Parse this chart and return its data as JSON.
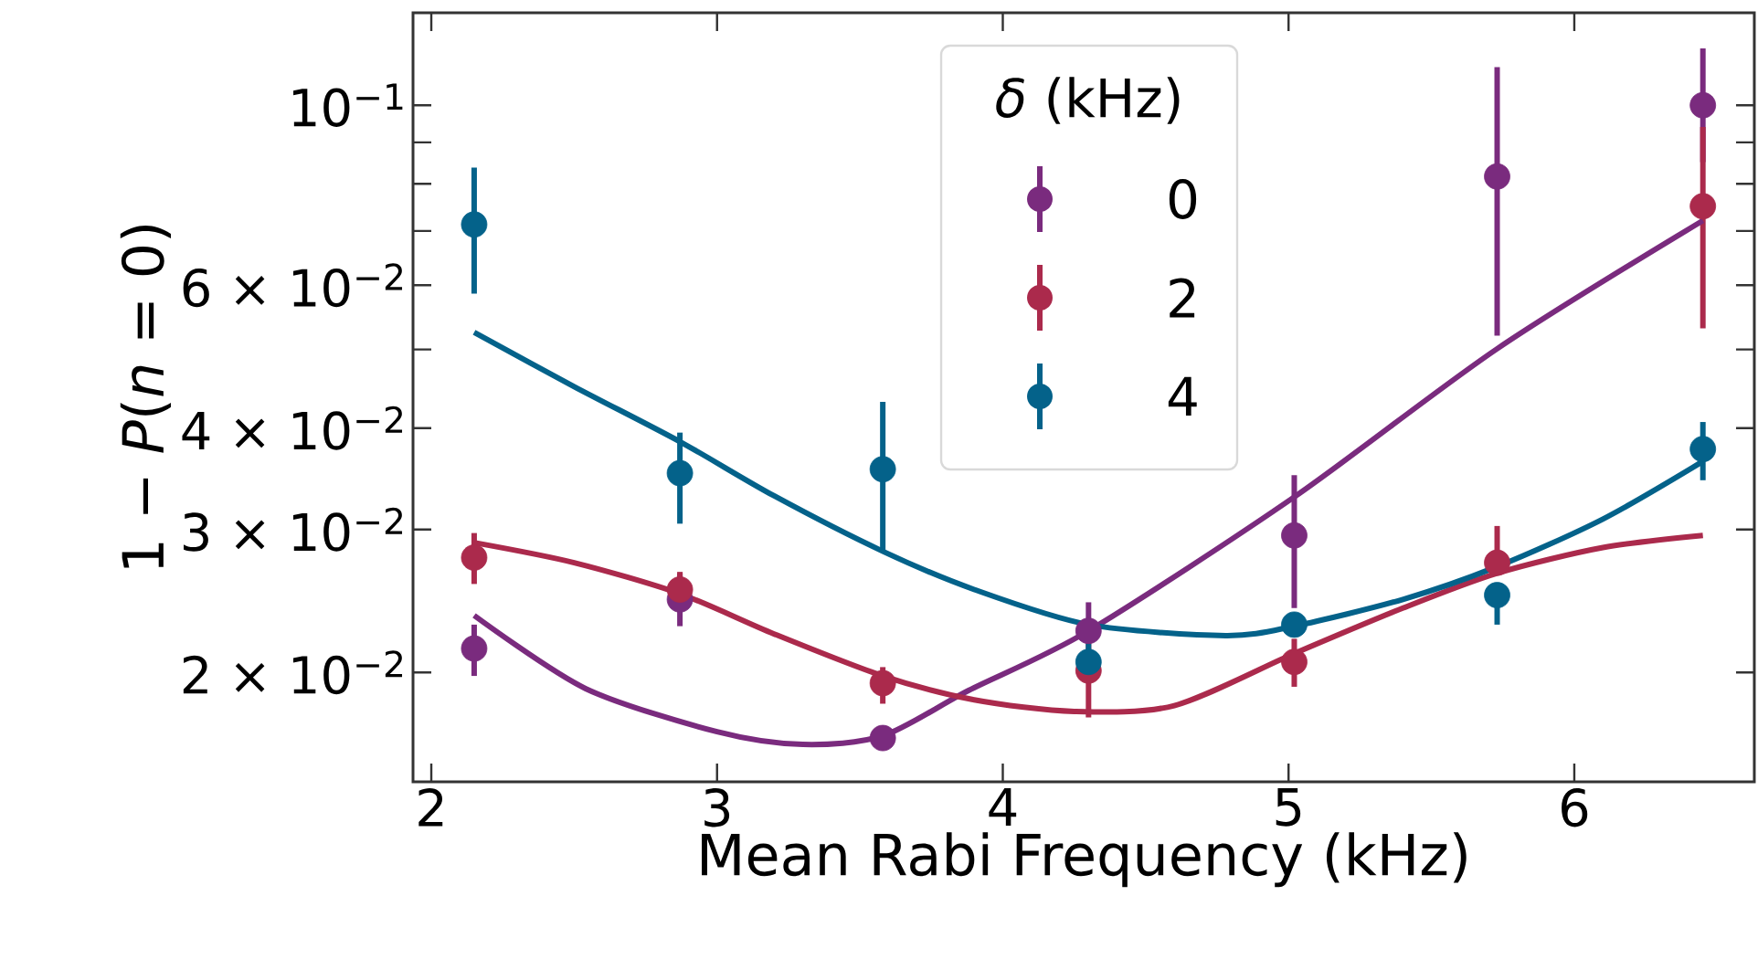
{
  "chart_data": {
    "type": "scatter",
    "xlabel": "Mean Rabi Frequency (kHz)",
    "ylabel": "1 − *P*(*n* = 0)",
    "legend_title": "*δ* (kHz)",
    "legend": "top",
    "log": "y",
    "marker": "circle",
    "xlim": [
      1.936,
      6.63
    ],
    "xticks": [
      2,
      3,
      4,
      5,
      6
    ],
    "ylim": [
      0.01466,
      0.13
    ],
    "yticks": [
      {
        "value": 0.02,
        "label": "2 × 10$^{−2}$"
      },
      {
        "value": 0.03,
        "label": "3 × 10$^{−2}$"
      },
      {
        "value": 0.04,
        "label": "4 × 10$^{−2}$"
      },
      {
        "value": 0.05,
        "label": null
      },
      {
        "value": 0.06,
        "label": "6 × 10$^{−2}$"
      },
      {
        "value": 0.07,
        "label": null
      },
      {
        "value": 0.08,
        "label": null
      },
      {
        "value": 0.09,
        "label": null
      },
      {
        "value": 0.1,
        "label": "10$^{−1}$"
      }
    ],
    "x": [
      2.15,
      2.87,
      3.58,
      4.3,
      5.02,
      5.73,
      6.45
    ],
    "series": [
      {
        "name": "0",
        "color": "#7a2b7e",
        "values": [
          0.0214,
          0.0246,
          0.0166,
          0.0225,
          0.0295,
          0.0817,
          0.1
        ],
        "errors": [
          [
            0.0198,
            0.0229
          ],
          [
            0.0228,
            0.0265
          ],
          null,
          [
            0.0225,
            0.0244
          ],
          [
            0.024,
            0.035
          ],
          [
            0.052,
            0.1114
          ],
          [
            0.0851,
            0.1175
          ]
        ]
      },
      {
        "name": "2",
        "color": "#ab2a4c",
        "values": [
          0.0277,
          0.0253,
          0.0194,
          0.0201,
          0.0206,
          0.0273,
          0.0751
        ],
        "errors": [
          [
            0.0257,
            0.0297
          ],
          [
            0.024,
            0.0266
          ],
          [
            0.0183,
            0.0203
          ],
          [
            0.0176,
            0.0231
          ],
          [
            0.0192,
            0.022
          ],
          [
            0.0273,
            0.0303
          ],
          [
            0.0531,
            0.094
          ]
        ]
      },
      {
        "name": "4",
        "color": "#04628a",
        "values": [
          0.0713,
          0.0352,
          0.0356,
          0.0206,
          0.0229,
          0.0249,
          0.0377
        ],
        "errors": [
          [
            0.0586,
            0.0838
          ],
          [
            0.0305,
            0.0395
          ],
          [
            0.0282,
            0.0431
          ],
          [
            0.0196,
            0.0217
          ],
          null,
          [
            0.0229,
            0.0249
          ],
          [
            0.0345,
            0.0407
          ]
        ]
      },
      {
        "type": "line",
        "marker": "none",
        "color": "#7a2b7e",
        "x": [
          2.15,
          2.54,
          3.0,
          3.3,
          3.58,
          3.88,
          4.3,
          5.02,
          5.73,
          6.45
        ],
        "values": [
          0.0235,
          0.0191,
          0.0169,
          0.0163,
          0.0167,
          0.019,
          0.0225,
          0.0329,
          0.0501,
          0.0721
        ]
      },
      {
        "type": "line",
        "marker": "none",
        "color": "#ab2a4c",
        "x": [
          2.15,
          2.5,
          2.87,
          3.2,
          3.58,
          3.9,
          4.25,
          4.6,
          5.02,
          5.4,
          5.73,
          6.1,
          6.45
        ],
        "values": [
          0.0289,
          0.0273,
          0.025,
          0.0223,
          0.0198,
          0.0185,
          0.0179,
          0.0182,
          0.0211,
          0.024,
          0.0265,
          0.0285,
          0.0295
        ]
      },
      {
        "type": "line",
        "marker": "none",
        "color": "#04628a",
        "x": [
          2.15,
          2.5,
          2.87,
          3.2,
          3.58,
          3.9,
          4.3,
          4.78,
          5.02,
          5.4,
          5.73,
          6.1,
          6.45
        ],
        "values": [
          0.0525,
          0.045,
          0.0385,
          0.033,
          0.0282,
          0.0253,
          0.0229,
          0.0222,
          0.0228,
          0.0246,
          0.027,
          0.0309,
          0.0364
        ]
      }
    ]
  }
}
